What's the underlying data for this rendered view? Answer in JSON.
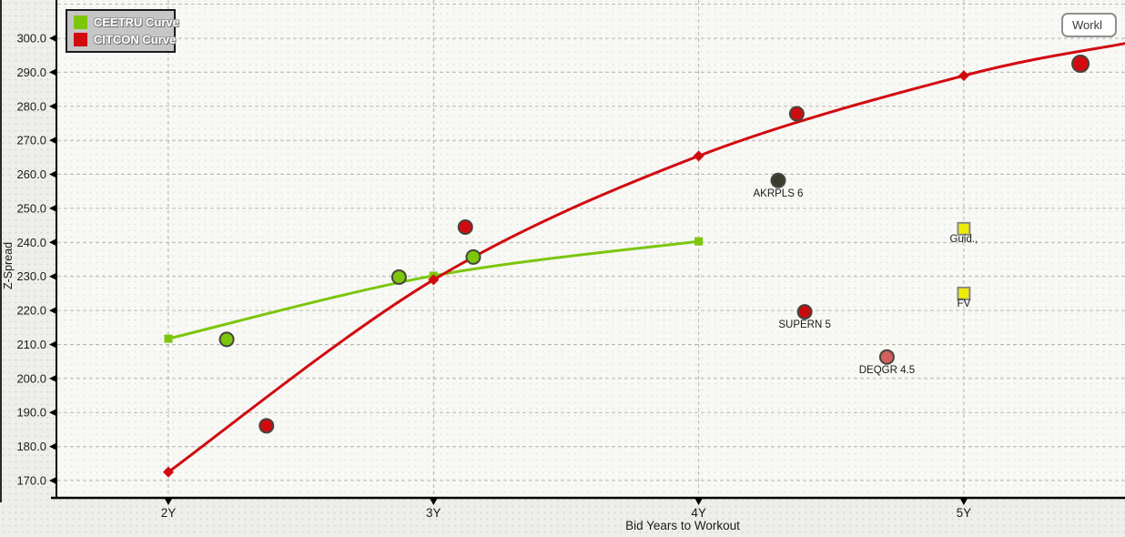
{
  "toolbar": {
    "workl_label": "Workl"
  },
  "legend": {
    "items": [
      {
        "label": "CEETRU Curve",
        "color": "#7cc60c"
      },
      {
        "label": "CITCON Curve",
        "color": "#d10a10"
      }
    ]
  },
  "chart_data": {
    "type": "line",
    "title": "",
    "xlabel": "Bid Years to Workout",
    "ylabel": "Z-Spread",
    "grid": true,
    "legend_position": "top-left",
    "xlim_years": [
      1.58,
      5.61
    ],
    "ylim": [
      164.5,
      311.5
    ],
    "x_ticks": [
      {
        "years": 2,
        "label": "2Y"
      },
      {
        "years": 3,
        "label": "3Y"
      },
      {
        "years": 4,
        "label": "4Y"
      },
      {
        "years": 5,
        "label": "5Y"
      }
    ],
    "y_ticks": [
      {
        "value": 300,
        "label": "300.0"
      },
      {
        "value": 290,
        "label": "290.0"
      },
      {
        "value": 280,
        "label": "280.0"
      },
      {
        "value": 270,
        "label": "270.0"
      },
      {
        "value": 260,
        "label": "260.0"
      },
      {
        "value": 250,
        "label": "250.0"
      },
      {
        "value": 240,
        "label": "240.0"
      },
      {
        "value": 230,
        "label": "230.0"
      },
      {
        "value": 220,
        "label": "220.0"
      },
      {
        "value": 210,
        "label": "210.0"
      },
      {
        "value": 200,
        "label": "200.0"
      },
      {
        "value": 190,
        "label": "190.0"
      },
      {
        "value": 180,
        "label": "180.0"
      },
      {
        "value": 170,
        "label": "170.0"
      }
    ],
    "y_grid_values": [
      170,
      180,
      190,
      200,
      210,
      220,
      230,
      240,
      250,
      260,
      270,
      280,
      290,
      300,
      310
    ],
    "series": [
      {
        "name": "CEETRU Curve",
        "color": "#7cc60c",
        "marker": "square",
        "x": [
          2,
          3,
          4
        ],
        "y": [
          211.7,
          230.2,
          240.3
        ]
      },
      {
        "name": "CITCON Curve",
        "color": "#d10a10",
        "marker": "diamond",
        "x": [
          2,
          3,
          4,
          5,
          5.61
        ],
        "y": [
          172.5,
          229.0,
          265.4,
          289.0,
          298.5
        ]
      }
    ],
    "points": [
      {
        "x": 2.22,
        "y": 211.5,
        "fill": "#7cc60c",
        "shape": "circle",
        "label": ""
      },
      {
        "x": 2.87,
        "y": 229.8,
        "fill": "#7cc60c",
        "shape": "circle",
        "label": ""
      },
      {
        "x": 3.15,
        "y": 235.7,
        "fill": "#7cc60c",
        "shape": "circle",
        "label": ""
      },
      {
        "x": 2.37,
        "y": 186.1,
        "fill": "#d10a10",
        "shape": "circle",
        "label": ""
      },
      {
        "x": 3.12,
        "y": 244.5,
        "fill": "#d10a10",
        "shape": "circle",
        "label": ""
      },
      {
        "x": 4.37,
        "y": 277.8,
        "fill": "#d10a10",
        "shape": "circle",
        "label": ""
      },
      {
        "x": 5.44,
        "y": 292.5,
        "fill": "#d10a10",
        "shape": "circle",
        "label": "",
        "r": 9
      },
      {
        "x": 4.3,
        "y": 258.2,
        "fill": "#3c3c2e",
        "shape": "circle",
        "label": "AKRPLS 6"
      },
      {
        "x": 4.4,
        "y": 219.6,
        "fill": "#c70c10",
        "shape": "circle",
        "label": "SUPERN 5"
      },
      {
        "x": 4.71,
        "y": 206.3,
        "fill": "#d2605e",
        "shape": "circle",
        "label": "DEQGR 4.5"
      },
      {
        "x": 5.0,
        "y": 244.0,
        "fill": "#ebeb07",
        "shape": "square",
        "label": "Guid.,"
      },
      {
        "x": 5.0,
        "y": 225.0,
        "fill": "#ebeb07",
        "shape": "square",
        "label": "FV"
      }
    ]
  }
}
